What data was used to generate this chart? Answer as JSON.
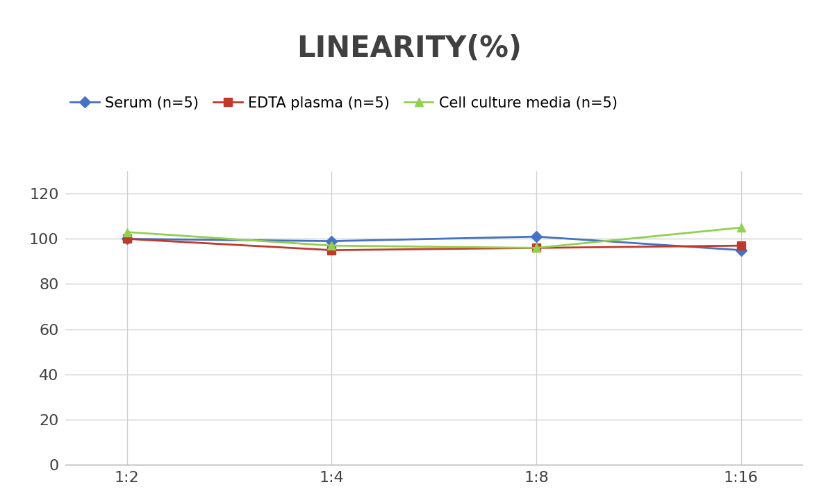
{
  "title": "LINEARITY(%)",
  "x_labels": [
    "1:2",
    "1:4",
    "1:8",
    "1:16"
  ],
  "x_positions": [
    0,
    1,
    2,
    3
  ],
  "series": [
    {
      "label": "Serum (n=5)",
      "values": [
        100,
        99,
        101,
        95
      ],
      "color": "#4472C4",
      "marker": "D",
      "marker_size": 8,
      "linewidth": 2
    },
    {
      "label": "EDTA plasma (n=5)",
      "values": [
        100,
        95,
        96,
        97
      ],
      "color": "#C0392B",
      "marker": "s",
      "marker_size": 8,
      "linewidth": 2
    },
    {
      "label": "Cell culture media (n=5)",
      "values": [
        103,
        97,
        96,
        105
      ],
      "color": "#92D050",
      "marker": "^",
      "marker_size": 9,
      "linewidth": 2
    }
  ],
  "ylim": [
    0,
    130
  ],
  "yticks": [
    0,
    20,
    40,
    60,
    80,
    100,
    120
  ],
  "title_fontsize": 30,
  "legend_fontsize": 15,
  "tick_fontsize": 16,
  "background_color": "#ffffff",
  "grid_color": "#d0d0d0",
  "grid_linewidth": 1
}
